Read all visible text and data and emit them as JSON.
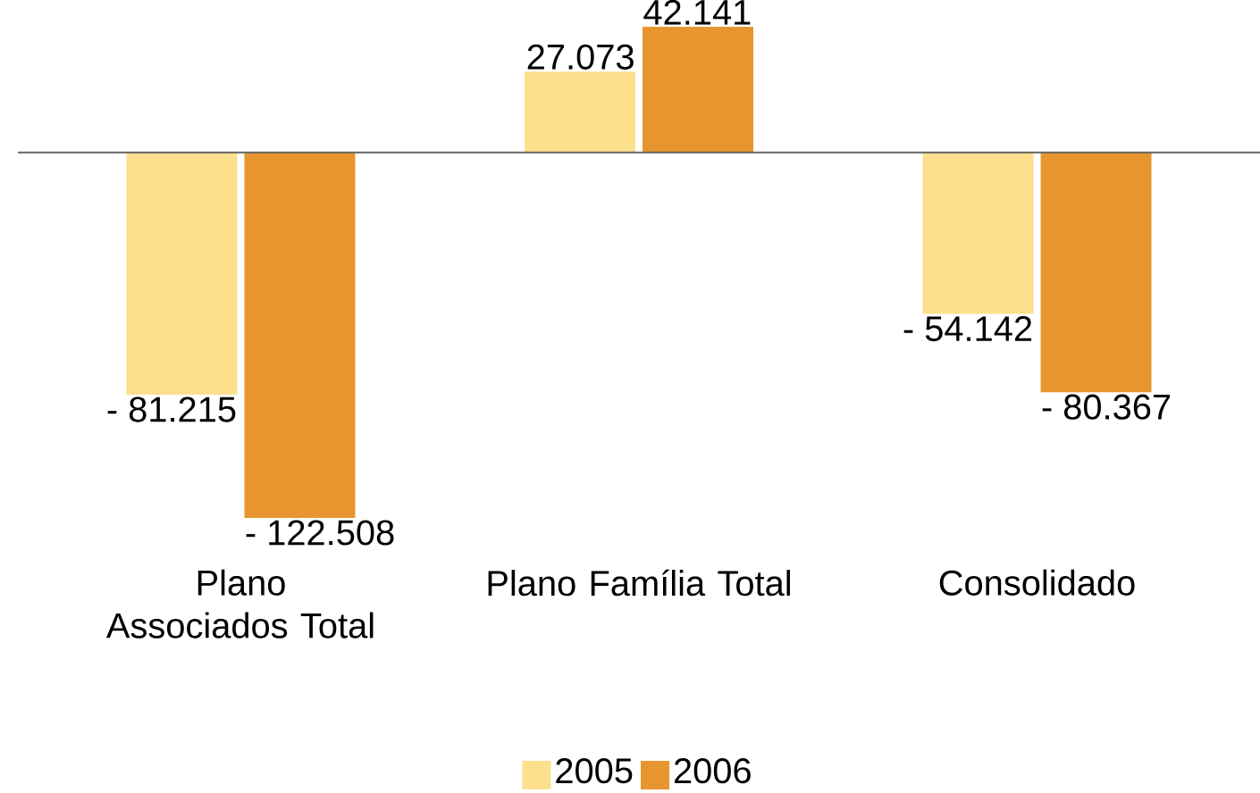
{
  "chart_data": {
    "type": "bar",
    "categories": [
      "Plano Associados Total",
      "Plano Família Total",
      "Consolidado"
    ],
    "series": [
      {
        "name": "2005",
        "color": "#fde08e",
        "values": [
          -81.215,
          27.073,
          -54.142
        ],
        "value_labels": [
          "- 81.215",
          "27.073",
          "- 54.142"
        ]
      },
      {
        "name": "2006",
        "color": "#e8952f",
        "values": [
          -122.508,
          42.141,
          -80.367
        ],
        "value_labels": [
          "- 122.508",
          "42.141",
          "- 80.367"
        ]
      }
    ],
    "legend": "bottom"
  }
}
